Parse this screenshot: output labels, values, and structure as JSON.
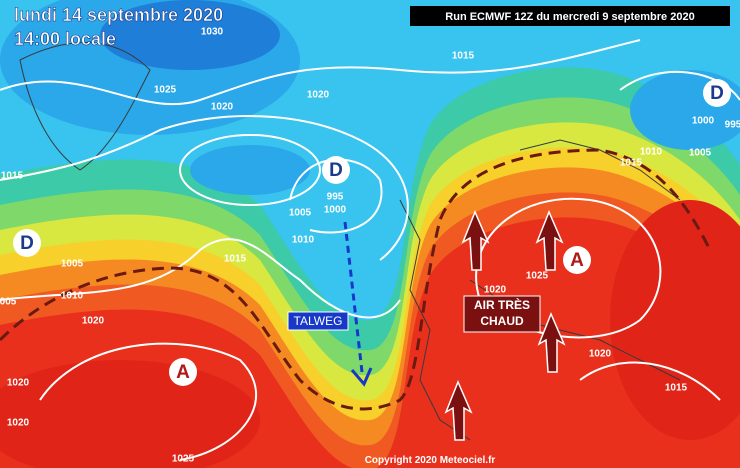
{
  "header": {
    "date": "lundi 14 septembre 2020",
    "time": "14:00 locale",
    "run": "Run ECMWF 12Z du mercredi 9 septembre 2020"
  },
  "pressure_systems": [
    "D",
    "D",
    "D",
    "A",
    "A"
  ],
  "annotations": {
    "trough": "TALWEG",
    "warm_air": [
      "AIR TRÈS",
      "CHAUD"
    ]
  },
  "isobar_labels": [
    1030,
    1015,
    1025,
    1020,
    1020,
    1000,
    995,
    1010,
    1015,
    1005,
    1015,
    995,
    1000,
    1005,
    1010,
    1015,
    1005,
    1010,
    "005",
    1020,
    1025,
    1020,
    1020,
    1020,
    1015,
    1020,
    1025
  ],
  "footer": "Copyright 2020 Meteociel.fr"
}
